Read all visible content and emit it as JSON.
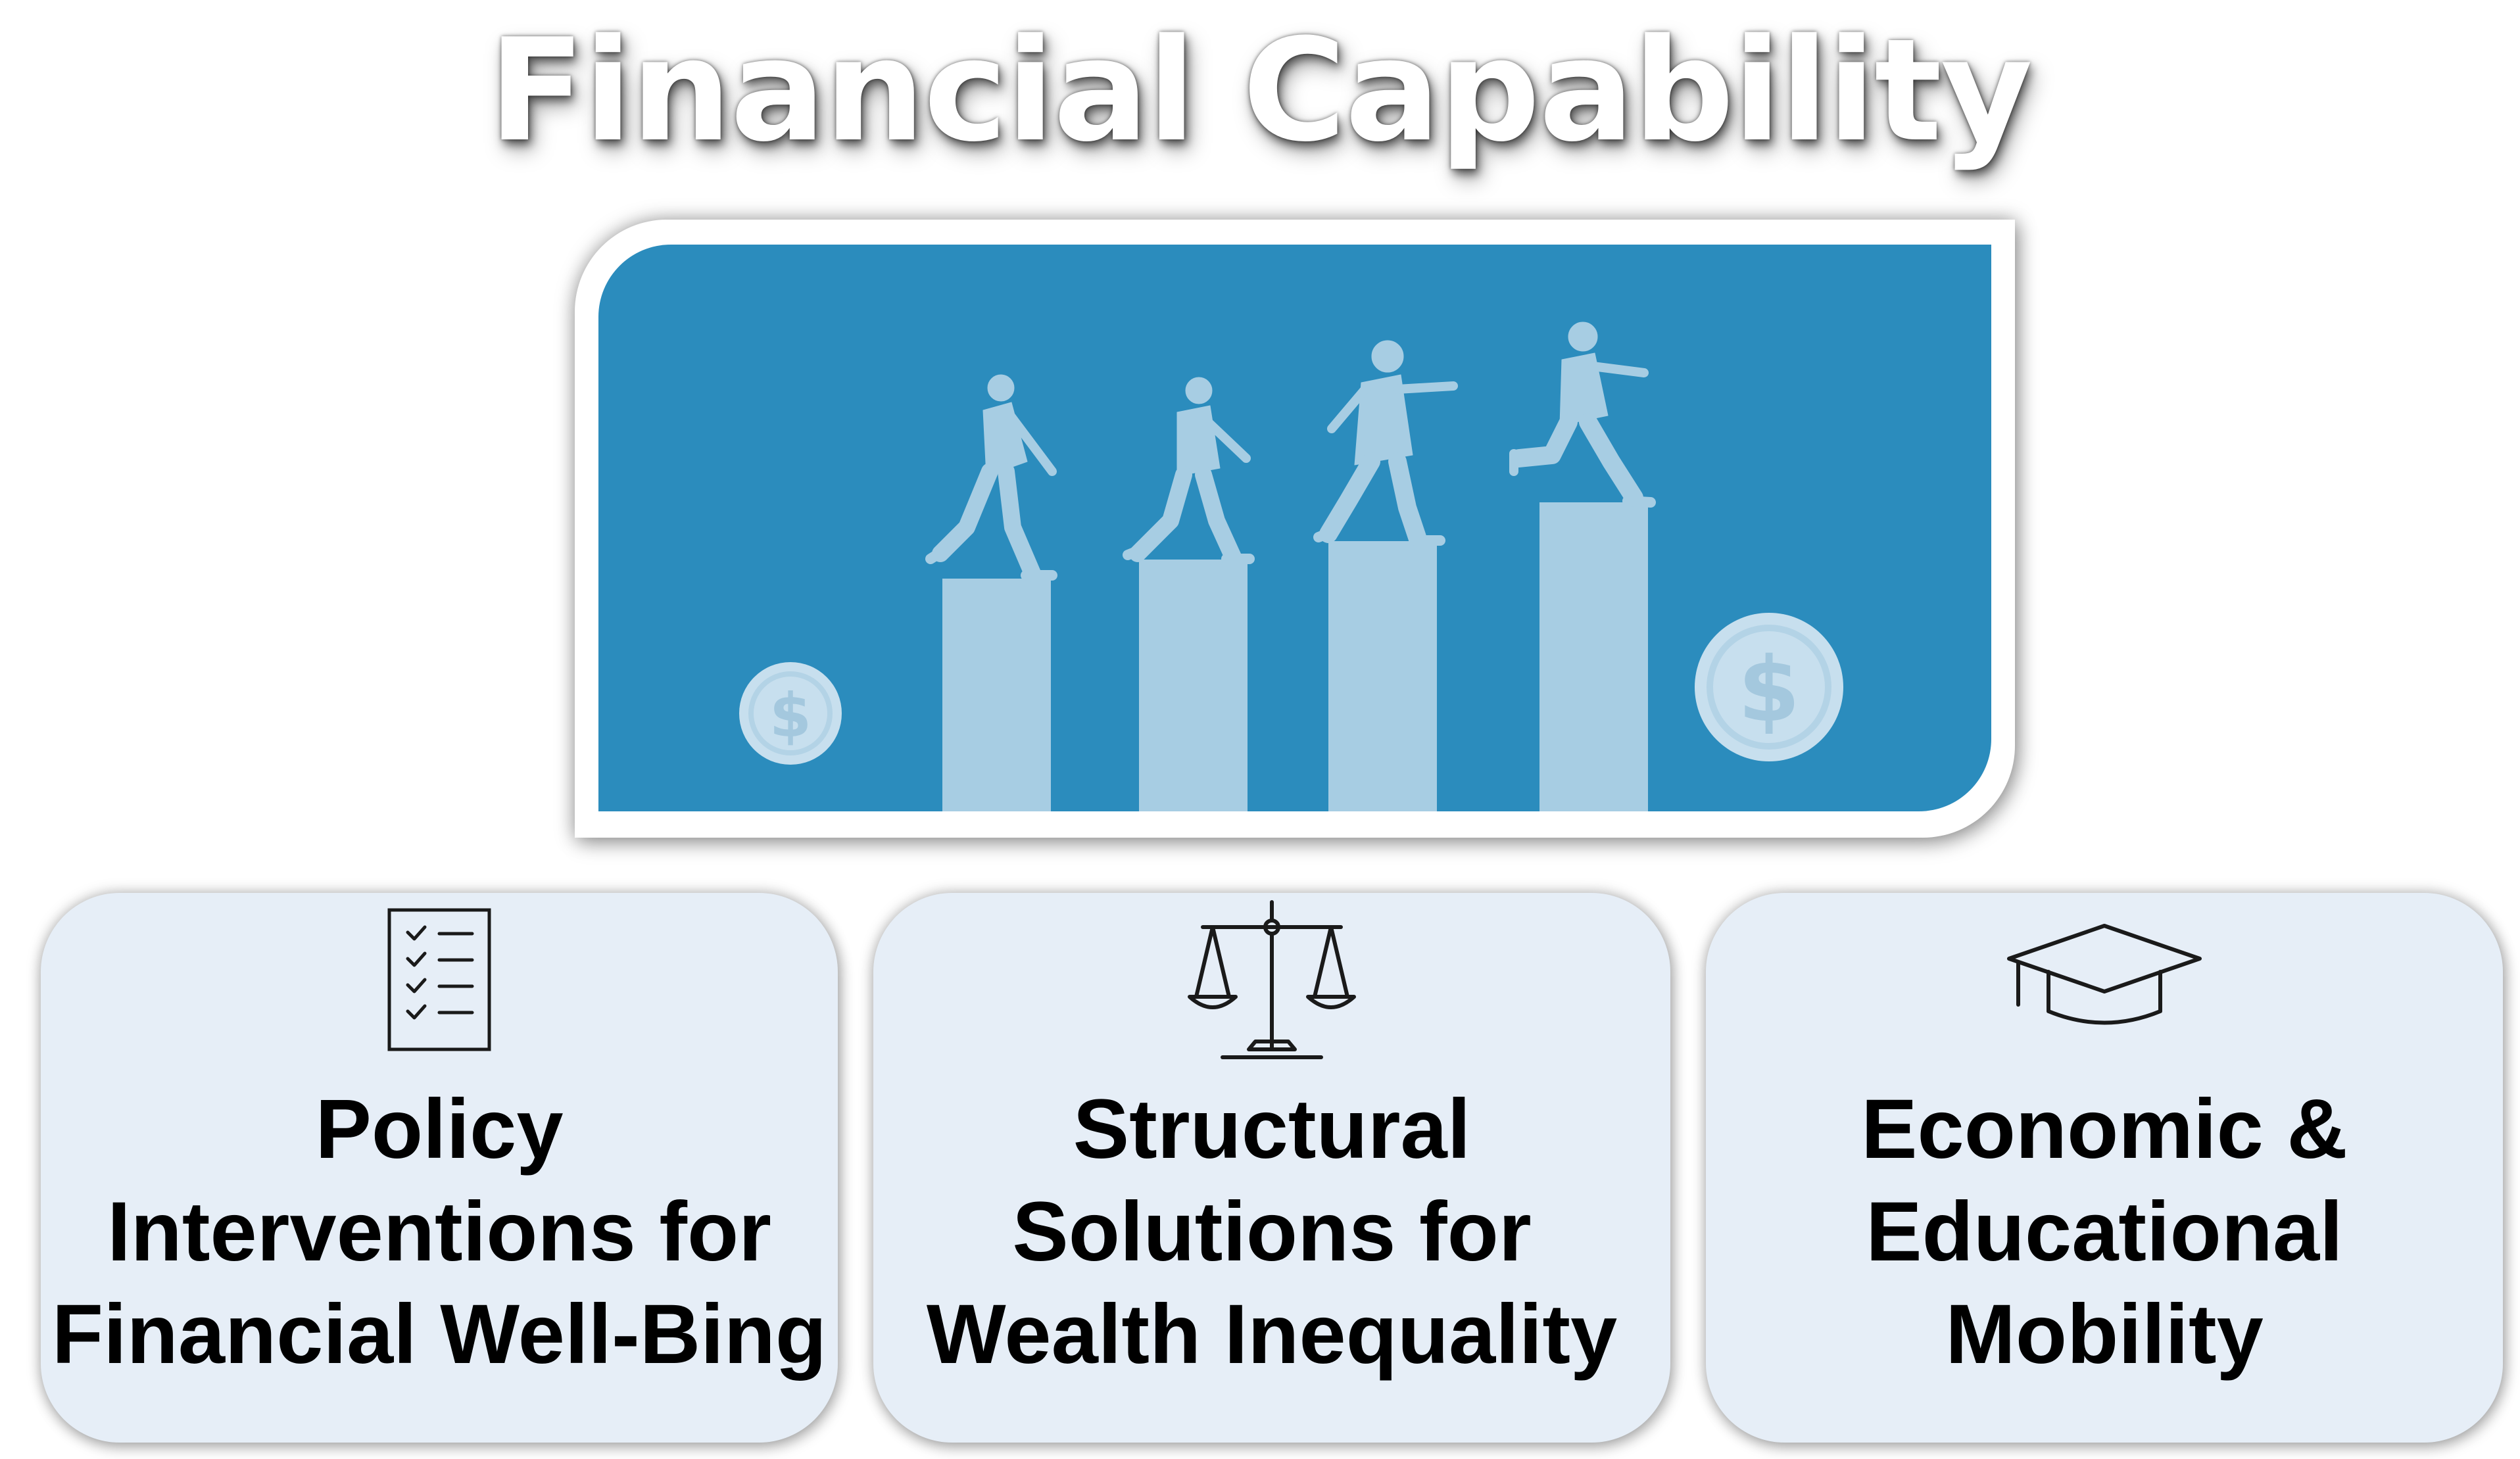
{
  "title": "Financial Capability",
  "hero": {
    "background_color": "#2b8cbd",
    "bar_color": "#a7cde3",
    "figure_color": "#a7cde3",
    "coin_color": "#c7dfee",
    "coin_symbol": "$"
  },
  "cards": [
    {
      "icon": "checklist-icon",
      "lines": [
        "Policy",
        "Interventions for",
        "Financial Well-Bing"
      ]
    },
    {
      "icon": "scales-of-justice-icon",
      "lines": [
        "Structural",
        "Solutions for",
        "Wealth Inequality"
      ]
    },
    {
      "icon": "graduation-cap-icon",
      "lines": [
        "Economic &",
        "Educational",
        "Mobility"
      ]
    }
  ]
}
